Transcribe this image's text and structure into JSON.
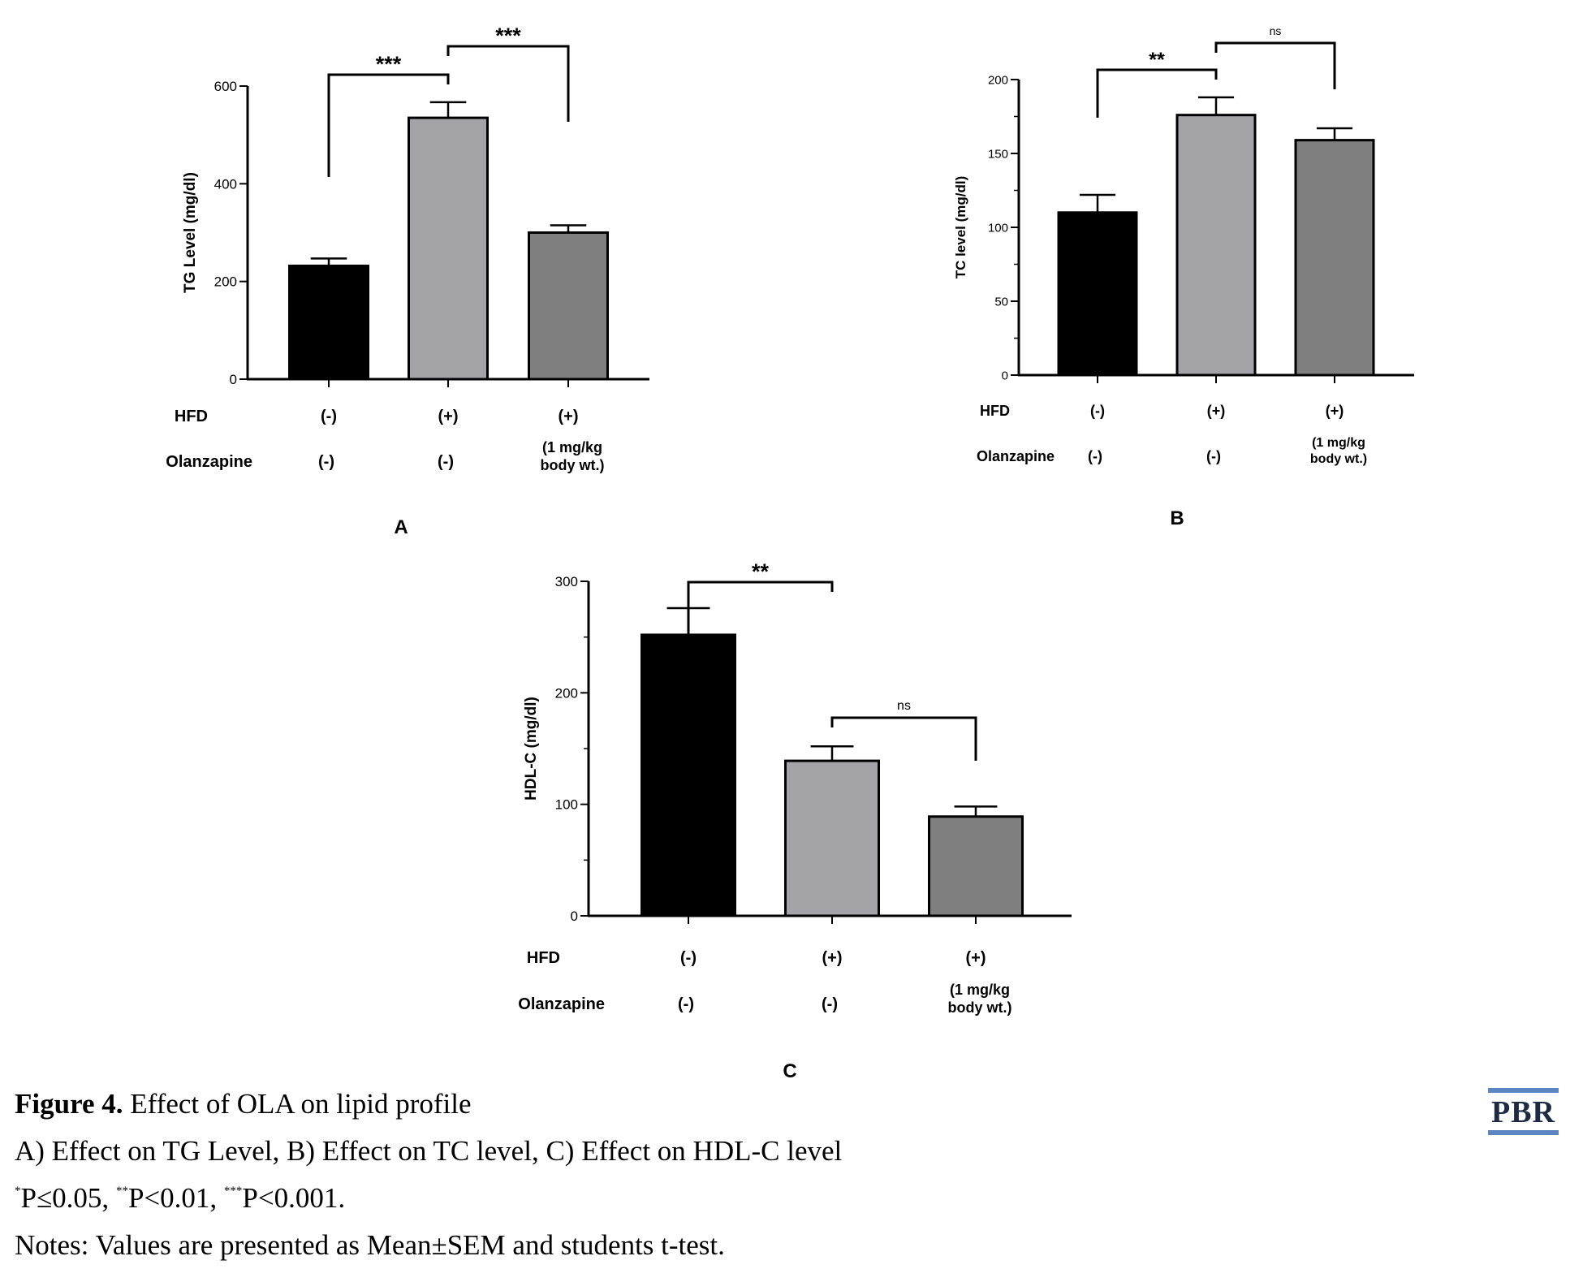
{
  "chart_data": [
    {
      "type": "bar",
      "panel_label": "A",
      "ylabel": "TG Level (mg/dl)",
      "ylim": [
        0,
        600
      ],
      "yticks": [
        0,
        200,
        400,
        600
      ],
      "minor_ticks": false,
      "series": [
        {
          "values": [
            232,
            535,
            300
          ],
          "errors": [
            15,
            32,
            15
          ],
          "colors": [
            "#000000",
            "#a3a3a8",
            "#7f7f7f"
          ]
        }
      ],
      "row_labels": [
        "HFD",
        "Olanzapine"
      ],
      "groups": [
        {
          "hfd": "(-)",
          "olanzapine": [
            "(-)"
          ]
        },
        {
          "hfd": "(+)",
          "olanzapine": [
            "(-)"
          ]
        },
        {
          "hfd": "(+)",
          "olanzapine": [
            "(1 mg/kg",
            "body wt.)"
          ]
        }
      ],
      "significance": [
        {
          "from": 0,
          "to": 1,
          "label": "***"
        },
        {
          "from": 1,
          "to": 2,
          "label": "***"
        }
      ]
    },
    {
      "type": "bar",
      "panel_label": "B",
      "ylabel": "TC level (mg/dl)",
      "ylim": [
        0,
        200
      ],
      "yticks": [
        0,
        50,
        100,
        150,
        200
      ],
      "minor_ticks": true,
      "series": [
        {
          "values": [
            110,
            176,
            159
          ],
          "errors": [
            12,
            12,
            8
          ],
          "colors": [
            "#000000",
            "#a3a3a8",
            "#7f7f7f"
          ]
        }
      ],
      "row_labels": [
        "HFD",
        "Olanzapine"
      ],
      "groups": [
        {
          "hfd": "(-)",
          "olanzapine": [
            "(-)"
          ]
        },
        {
          "hfd": "(+)",
          "olanzapine": [
            "(-)"
          ]
        },
        {
          "hfd": "(+)",
          "olanzapine": [
            "(1 mg/kg",
            "body wt.)"
          ]
        }
      ],
      "significance": [
        {
          "from": 0,
          "to": 1,
          "label": "**"
        },
        {
          "from": 1,
          "to": 2,
          "label": "ns"
        }
      ]
    },
    {
      "type": "bar",
      "panel_label": "C",
      "ylabel": "HDL-C (mg/dl)",
      "ylim": [
        0,
        300
      ],
      "yticks": [
        0,
        100,
        200,
        300
      ],
      "minor_ticks": true,
      "series": [
        {
          "values": [
            252,
            139,
            89
          ],
          "errors": [
            24,
            13,
            9
          ],
          "colors": [
            "#000000",
            "#a3a3a8",
            "#7f7f7f"
          ]
        }
      ],
      "row_labels": [
        "HFD",
        "Olanzapine"
      ],
      "groups": [
        {
          "hfd": "(-)",
          "olanzapine": [
            "(-)"
          ]
        },
        {
          "hfd": "(+)",
          "olanzapine": [
            "(-)"
          ]
        },
        {
          "hfd": "(+)",
          "olanzapine": [
            "(1 mg/kg",
            "body wt.)"
          ]
        }
      ],
      "significance": [
        {
          "from": 0,
          "to": 1,
          "label": "**"
        },
        {
          "from": 1,
          "to": 2,
          "label": "ns"
        }
      ]
    }
  ],
  "caption": {
    "figure_label": "Figure 4.",
    "title": "Effect of OLA on lipid profile",
    "line2": "A) Effect on TG Level, B) Effect on TC level, C) Effect on HDL-C level",
    "line3": {
      "sup1": "*",
      "t1": "P≤0.05, ",
      "sup2": "**",
      "t2": "P<0.01, ",
      "sup3": "***",
      "t3": "P<0.001."
    },
    "line4": "Notes: Values are presented as Mean±SEM and students t-test."
  },
  "logo": {
    "text": "PBR",
    "color": "#5b86c1"
  }
}
